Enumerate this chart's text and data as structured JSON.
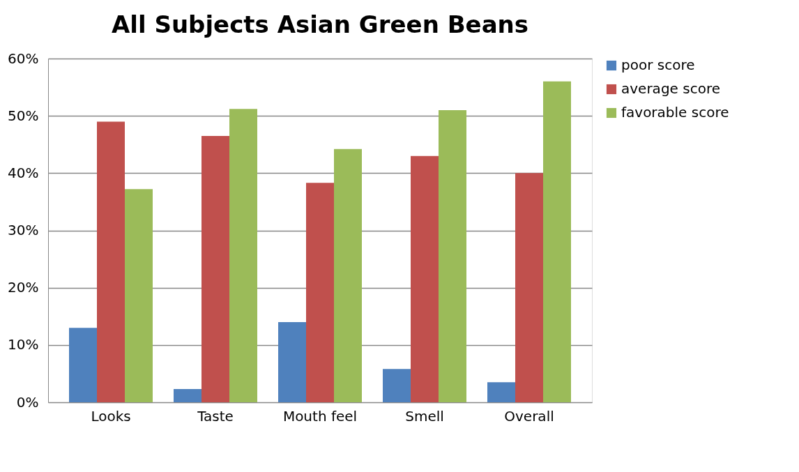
{
  "chart_data": {
    "type": "bar",
    "title": "All Subjects Asian Green Beans",
    "categories": [
      "Looks",
      "Taste",
      "Mouth feel",
      "Smell",
      "Overall"
    ],
    "series": [
      {
        "name": "poor score",
        "color": "#4f81bd",
        "values": [
          13.0,
          2.3,
          14.0,
          5.8,
          3.5
        ]
      },
      {
        "name": "average score",
        "color": "#c0504d",
        "values": [
          49.0,
          46.5,
          38.3,
          43.0,
          40.0
        ]
      },
      {
        "name": "favorable score",
        "color": "#9bbb59",
        "values": [
          37.2,
          51.2,
          44.2,
          51.0,
          56.0
        ]
      }
    ],
    "ylim": [
      0,
      60
    ],
    "yticks": [
      {
        "value": 0,
        "label": "0%"
      },
      {
        "value": 10,
        "label": "10%"
      },
      {
        "value": 20,
        "label": "20%"
      },
      {
        "value": 30,
        "label": "30%"
      },
      {
        "value": 40,
        "label": "40%"
      },
      {
        "value": 50,
        "label": "50%"
      },
      {
        "value": 60,
        "label": "60%"
      }
    ],
    "grid": "y",
    "legend": "right"
  }
}
